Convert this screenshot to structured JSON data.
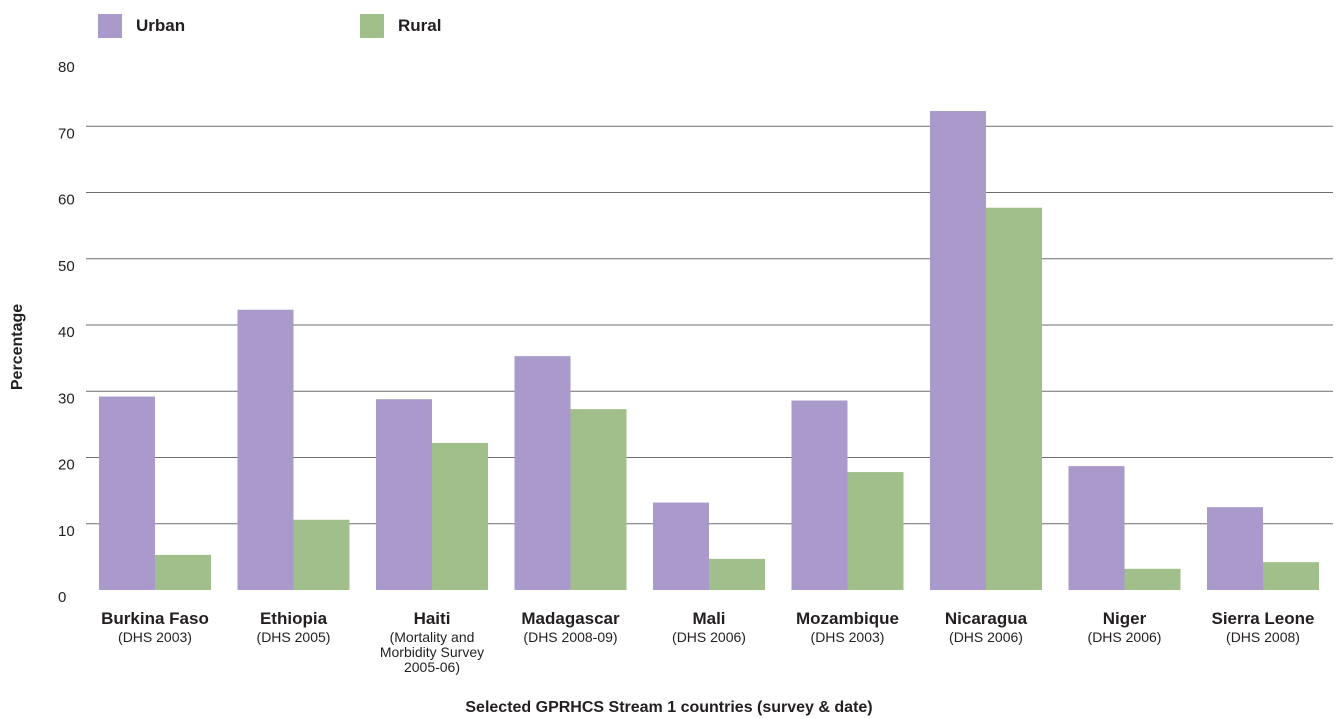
{
  "chart_data": {
    "type": "bar",
    "categories": [
      "Burkina Faso",
      "Ethiopia",
      "Haiti",
      "Madagascar",
      "Mali",
      "Mozambique",
      "Nicaragua",
      "Niger",
      "Sierra Leone"
    ],
    "subtitles": [
      [
        "(DHS 2003)"
      ],
      [
        "(DHS 2005)"
      ],
      [
        "(Mortality and",
        "Morbidity Survey",
        "2005-06)"
      ],
      [
        "(DHS 2008-09)"
      ],
      [
        "(DHS 2006)"
      ],
      [
        "(DHS 2003)"
      ],
      [
        "(DHS 2006)"
      ],
      [
        "(DHS 2006)"
      ],
      [
        "(DHS 2008)"
      ]
    ],
    "series": [
      {
        "name": "Urban",
        "color": "#aa9acb",
        "values": [
          29.2,
          42.3,
          28.8,
          35.3,
          13.2,
          28.6,
          72.3,
          18.7,
          12.5
        ]
      },
      {
        "name": "Rural",
        "color": "#a0bf8b",
        "values": [
          5.3,
          10.6,
          22.2,
          27.3,
          4.7,
          17.8,
          57.7,
          3.2,
          4.2
        ]
      }
    ],
    "yticks": [
      0,
      10,
      20,
      30,
      40,
      50,
      60,
      70,
      80
    ],
    "ylim": [
      0,
      80
    ],
    "ylabel": "Percentage",
    "xlabel": "Selected GPRHCS Stream 1 countries (survey & date)",
    "grid": true,
    "legend_position": "top-left"
  }
}
